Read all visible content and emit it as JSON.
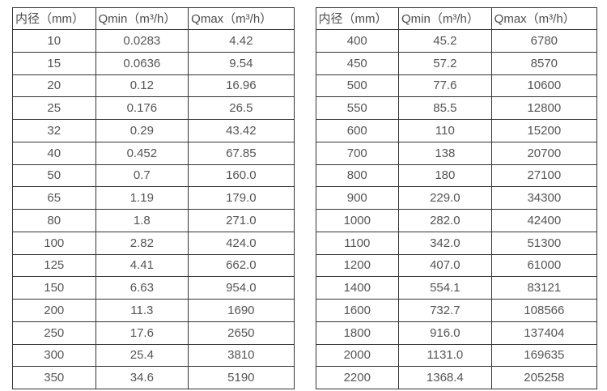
{
  "page": {
    "background_color": "#ffffff",
    "border_color": "#333333",
    "text_color": "#555555"
  },
  "tables": [
    {
      "name": "small-diameter-flow-table",
      "headers": [
        "内径（mm）",
        "Qmin（m³/h）",
        "Qmax（m³/h）"
      ],
      "rows": [
        [
          "10",
          "0.0283",
          "4.42"
        ],
        [
          "15",
          "0.0636",
          "9.54"
        ],
        [
          "20",
          "0.12",
          "16.96"
        ],
        [
          "25",
          "0.176",
          "26.5"
        ],
        [
          "32",
          "0.29",
          "43.42"
        ],
        [
          "40",
          "0.452",
          "67.85"
        ],
        [
          "50",
          "0.7",
          "160.0"
        ],
        [
          "65",
          "1.19",
          "179.0"
        ],
        [
          "80",
          "1.8",
          "271.0"
        ],
        [
          "100",
          "2.82",
          "424.0"
        ],
        [
          "125",
          "4.41",
          "662.0"
        ],
        [
          "150",
          "6.63",
          "954.0"
        ],
        [
          "200",
          "11.3",
          "1690"
        ],
        [
          "250",
          "17.6",
          "2650"
        ],
        [
          "300",
          "25.4",
          "3810"
        ],
        [
          "350",
          "34.6",
          "5190"
        ]
      ]
    },
    {
      "name": "large-diameter-flow-table",
      "headers": [
        "内径（mm）",
        "Qmin（m³/h）",
        "Qmax（m³/h）"
      ],
      "rows": [
        [
          "400",
          "45.2",
          "6780"
        ],
        [
          "450",
          "57.2",
          "8570"
        ],
        [
          "500",
          "77.6",
          "10600"
        ],
        [
          "550",
          "85.5",
          "12800"
        ],
        [
          "600",
          "110",
          "15200"
        ],
        [
          "700",
          "138",
          "20700"
        ],
        [
          "800",
          "180",
          "27100"
        ],
        [
          "900",
          "229.0",
          "34300"
        ],
        [
          "1000",
          "282.0",
          "42400"
        ],
        [
          "1100",
          "342.0",
          "51300"
        ],
        [
          "1200",
          "407.0",
          "61000"
        ],
        [
          "1400",
          "554.1",
          "83121"
        ],
        [
          "1600",
          "732.7",
          "108566"
        ],
        [
          "1800",
          "916.0",
          "137404"
        ],
        [
          "2000",
          "1131.0",
          "169635"
        ],
        [
          "2200",
          "1368.4",
          "205258"
        ]
      ]
    }
  ]
}
